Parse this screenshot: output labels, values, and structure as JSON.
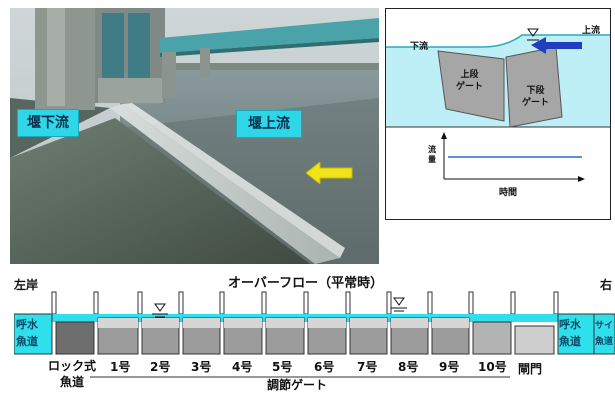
{
  "photo": {
    "downstream_label": "堰下流",
    "upstream_label": "堰上流",
    "arrow_color": "#f2e21a"
  },
  "inset": {
    "upstream_label": "上流",
    "downstream_label": "下流",
    "upper_gate_label": [
      "上段",
      "ゲート"
    ],
    "lower_gate_label": [
      "下段",
      "ゲート"
    ],
    "graph_y_label": "流量",
    "graph_x_label": "時間",
    "water_color": "#bfeff6",
    "arrow_color": "#1f3fbf",
    "graph_line_color": "#1f6fd6"
  },
  "gates": {
    "left_bank": "左岸",
    "title": "オーバーフロー（平常時）",
    "right_bank": "右",
    "left_fishway_label": [
      "呼水",
      "魚道"
    ],
    "right_fishway_label": [
      "呼水",
      "魚道"
    ],
    "right_edge_label": [
      "サイ",
      "魚道"
    ],
    "rock_fishway_label": [
      "ロック式",
      "魚道"
    ],
    "gate_numbers": [
      "1号",
      "2号",
      "3号",
      "4号",
      "5号",
      "6号",
      "7号",
      "8号",
      "9号",
      "10号"
    ],
    "sluice_label": "閘門",
    "control_gate_label": "調節ゲート",
    "water_color": "#2fe0ec"
  }
}
